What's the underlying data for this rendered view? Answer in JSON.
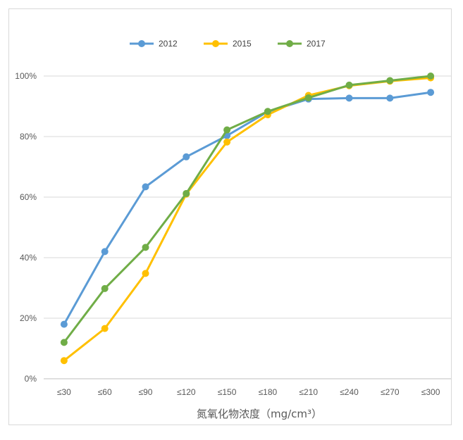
{
  "chart_data": {
    "type": "line",
    "categories": [
      "≤30",
      "≤60",
      "≤90",
      "≤120",
      "≤150",
      "≤180",
      "≤210",
      "≤240",
      "≤270",
      "≤300"
    ],
    "series": [
      {
        "name": "2012",
        "color": "#5b9bd5",
        "values": [
          0.18,
          0.42,
          0.634,
          0.733,
          0.803,
          0.882,
          0.924,
          0.927,
          0.927,
          0.946
        ]
      },
      {
        "name": "2015",
        "color": "#ffc000",
        "values": [
          0.06,
          0.166,
          0.348,
          0.61,
          0.782,
          0.872,
          0.936,
          0.968,
          0.983,
          0.994
        ]
      },
      {
        "name": "2017",
        "color": "#70ad47",
        "values": [
          0.12,
          0.298,
          0.434,
          0.612,
          0.822,
          0.883,
          0.928,
          0.97,
          0.985,
          1.0
        ]
      }
    ],
    "yticks": [
      "0%",
      "20%",
      "40%",
      "60%",
      "80%",
      "100%"
    ],
    "ylim": [
      0,
      1
    ],
    "xlabel": "氮氧化物浓度（mg/cm³）",
    "ylabel": "",
    "grid": true,
    "legend_position": "top"
  }
}
